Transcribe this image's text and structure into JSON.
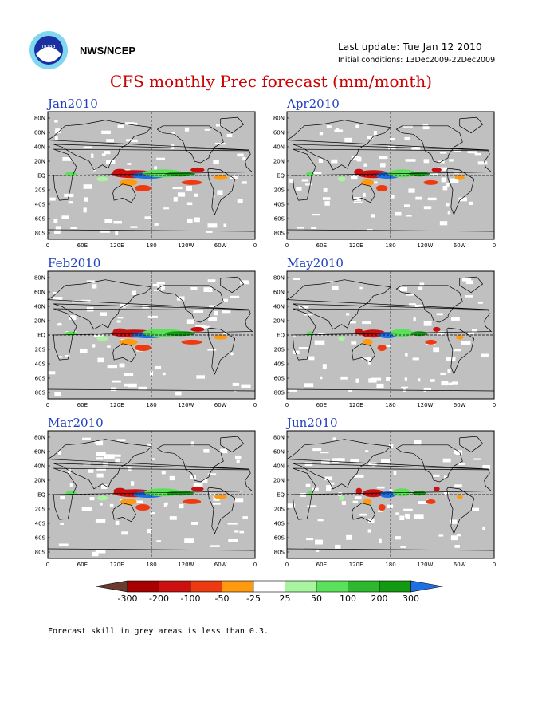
{
  "header": {
    "org": "NWS/NCEP",
    "last_update": "Last update: Tue Jan 12 2010",
    "initial_conditions": "Initial conditions: 13Dec2009-22Dec2009",
    "title": "CFS monthly Prec forecast (mm/month)"
  },
  "colors": {
    "skill_mask": "#c0c0c0",
    "ocean_white": "#ffffff",
    "coast": "#000000"
  },
  "chart_data": {
    "type": "heatmap",
    "variable": "Precipitation anomaly (mm/month)",
    "panels": [
      {
        "month": "Jan2010",
        "intensity": 1.0
      },
      {
        "month": "Apr2010",
        "intensity": 0.7
      },
      {
        "month": "Feb2010",
        "intensity": 1.0
      },
      {
        "month": "May2010",
        "intensity": 0.55
      },
      {
        "month": "Mar2010",
        "intensity": 0.9
      },
      {
        "month": "Jun2010",
        "intensity": 0.45
      }
    ],
    "lat_ticks": [
      "80N",
      "60N",
      "40N",
      "20N",
      "EQ",
      "20S",
      "40S",
      "60S",
      "80S"
    ],
    "lon_ticks": [
      "0",
      "60E",
      "120E",
      "180",
      "120W",
      "60W",
      "0"
    ],
    "colorbar": {
      "levels": [
        "-300",
        "-200",
        "-100",
        "-50",
        "-25",
        "25",
        "50",
        "100",
        "200",
        "300"
      ],
      "colors": [
        "#6b3b2e",
        "#a80000",
        "#cc1010",
        "#ee3a10",
        "#ff9a10",
        "#ffffff",
        "#a8f5a0",
        "#5ae05a",
        "#2db82d",
        "#129a12",
        "#1e6fe0"
      ]
    },
    "note": "Forecast skill in grey areas is less than 0.3."
  }
}
